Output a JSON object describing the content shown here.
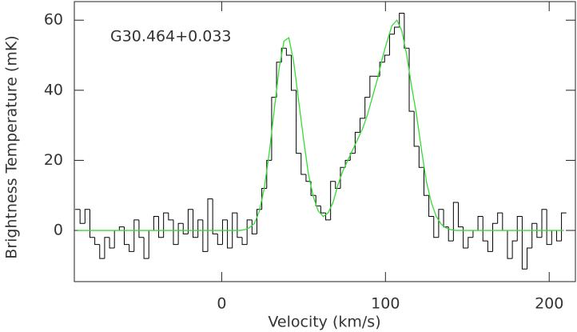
{
  "chart_data": {
    "type": "line",
    "annotation": "G30.464+0.033",
    "xlabel": "Velocity (km/s)",
    "ylabel": "Brightness Temperature (mK)",
    "xlim": [
      -90,
      216
    ],
    "ylim": [
      -14.6,
      65.3
    ],
    "xticks": [
      0,
      100,
      200
    ],
    "yticks": [
      0,
      20,
      40,
      60
    ],
    "x": [
      -88,
      -85,
      -82,
      -79,
      -76,
      -73,
      -70,
      -67,
      -64,
      -61,
      -58,
      -55,
      -52,
      -49,
      -46,
      -43,
      -40,
      -37,
      -34,
      -31,
      -28,
      -25,
      -22,
      -19,
      -16,
      -13,
      -10,
      -7,
      -4,
      -1,
      2,
      5,
      8,
      11,
      14,
      17,
      20,
      23,
      26,
      29,
      32,
      35,
      38,
      41,
      44,
      47,
      50,
      53,
      56,
      59,
      62,
      65,
      68,
      71,
      74,
      77,
      80,
      83,
      86,
      89,
      92,
      95,
      98,
      101,
      104,
      107,
      110,
      113,
      116,
      119,
      122,
      125,
      128,
      131,
      134,
      137,
      140,
      143,
      146,
      149,
      152,
      155,
      158,
      161,
      164,
      167,
      170,
      173,
      176,
      179,
      182,
      185,
      188,
      191,
      194,
      197,
      200,
      203,
      206,
      209
    ],
    "series": [
      {
        "color": "#000000",
        "style": "step",
        "values": [
          6,
          2,
          6,
          -2,
          -4,
          -8,
          -2,
          -5,
          0,
          1,
          -4,
          -6,
          3,
          -2,
          -8,
          0,
          4,
          -2,
          5,
          3,
          -4,
          2,
          -1,
          6,
          -2,
          3,
          -6,
          9,
          -1,
          -4,
          3,
          -5,
          5,
          -2,
          -4,
          3,
          -1,
          6,
          12,
          20,
          38,
          48,
          52,
          50,
          40,
          22,
          16,
          14,
          10,
          7,
          5,
          3,
          14,
          12,
          18,
          20,
          22,
          28,
          32,
          38,
          44,
          44,
          48,
          50,
          56,
          58,
          62,
          52,
          34,
          24,
          18,
          10,
          4,
          -2,
          6,
          1,
          -3,
          8,
          1,
          -5,
          -2,
          0,
          4,
          -3,
          -6,
          2,
          5,
          0,
          -8,
          -3,
          4,
          -11,
          -5,
          2,
          -2,
          6,
          -4,
          0,
          -3,
          5
        ]
      },
      {
        "color": "#33dd33",
        "style": "line",
        "values": [
          0,
          0,
          0,
          0,
          0,
          0,
          0,
          0,
          0,
          0,
          0,
          0,
          0,
          0,
          0,
          0,
          0,
          0,
          0,
          0,
          0,
          0,
          0,
          0,
          0,
          0,
          0,
          0,
          0,
          0,
          0,
          0,
          0,
          0,
          0.2,
          0.8,
          2,
          5.5,
          12,
          22,
          34,
          46,
          54,
          55,
          48,
          37,
          26,
          16,
          9.5,
          5.5,
          4,
          5,
          8,
          13,
          17,
          20,
          23,
          26,
          29,
          33,
          38,
          43,
          49,
          54,
          58.5,
          60,
          57,
          50,
          41,
          33,
          23,
          14,
          8,
          4,
          1.8,
          0.7,
          0.2,
          0,
          0,
          0,
          0,
          0,
          0,
          0,
          0,
          0,
          0,
          0,
          0,
          0,
          0,
          0,
          0,
          0,
          0,
          0,
          0,
          0,
          0,
          0
        ]
      }
    ]
  }
}
